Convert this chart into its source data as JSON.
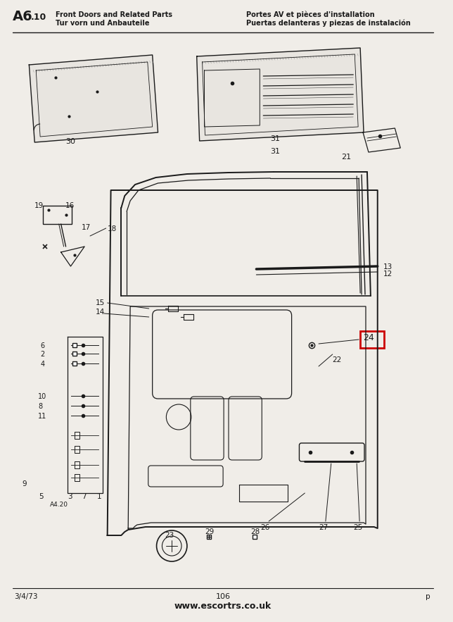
{
  "title_left_line1": "Front Doors and Related Parts",
  "title_left_line2": "Tur vorn und Anbauteile",
  "title_right_line1": "Portes AV et pièces d'installation",
  "title_right_line2": "Puertas delanteras y piezas de instalación",
  "page_ref_big": "A6",
  "page_ref_small": ".10",
  "bottom_left": "3/4/73",
  "bottom_center": "106",
  "bottom_url": "www.escortrs.co.uk",
  "highlight_label": "24",
  "highlight_color": "#cc0000",
  "bg_color": "#f0ede8",
  "line_color": "#1a1a1a",
  "text_color": "#1a1a1a"
}
